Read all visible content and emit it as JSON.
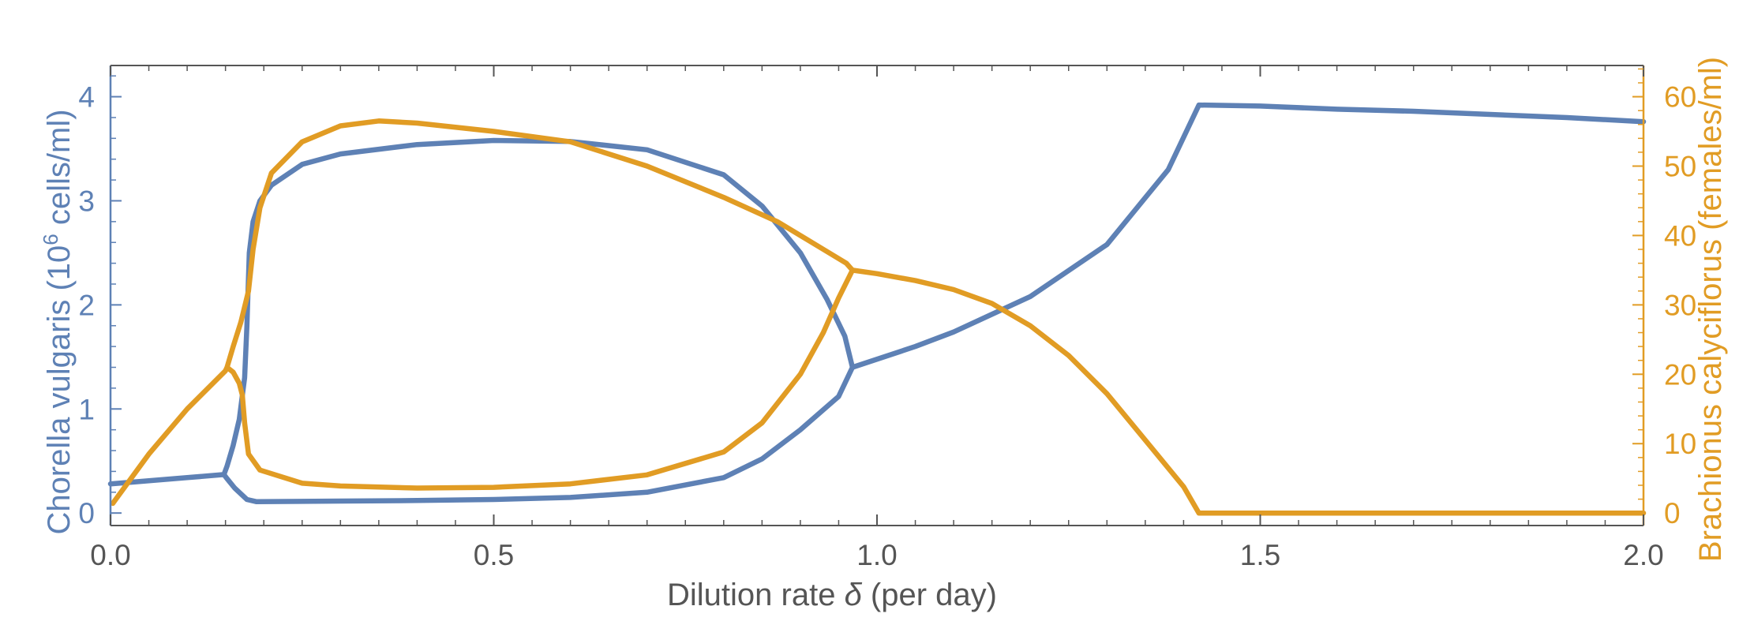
{
  "chart_data": {
    "type": "line",
    "xlabel": "Dilution rate δ (per day)",
    "xlabel_parts": {
      "before": "Dilution rate ",
      "symbol": "δ",
      "after": " (per day)"
    },
    "ylabel_left": "Chorella vulgaris (10^6 cells/ml)",
    "ylabel_left_parts": {
      "before": "Chorella vulgaris (10",
      "sup": "6",
      "after": " cells/ml)"
    },
    "ylabel_right": "Brachionus calyciflorus (females/ml)",
    "xlim": [
      0,
      2
    ],
    "ylim_left": [
      -0.12,
      4.3
    ],
    "ylim_right": [
      -1.8,
      64.5
    ],
    "x_ticks": [
      0.0,
      0.5,
      1.0,
      1.5,
      2.0
    ],
    "x_tick_labels": [
      "0.0",
      "0.5",
      "1.0",
      "1.5",
      "2.0"
    ],
    "y_left_ticks": [
      0,
      1,
      2,
      3,
      4
    ],
    "y_left_tick_labels": [
      "0",
      "1",
      "2",
      "3",
      "4"
    ],
    "y_right_ticks": [
      0,
      10,
      20,
      30,
      40,
      50,
      60
    ],
    "y_right_tick_labels": [
      "0",
      "10",
      "20",
      "30",
      "40",
      "50",
      "60"
    ],
    "colors": {
      "left_axis": "#5E81B5",
      "right_axis": "#E19C24",
      "frame": "#555555",
      "text": "#555555"
    },
    "series": [
      {
        "axis": "left",
        "color": "#5E81B5",
        "points": [
          [
            0.0,
            0.28
          ],
          [
            0.05,
            0.31
          ],
          [
            0.1,
            0.34
          ],
          [
            0.148,
            0.37
          ],
          [
            0.152,
            0.45
          ],
          [
            0.16,
            0.65
          ],
          [
            0.168,
            0.9
          ],
          [
            0.175,
            1.3
          ],
          [
            0.178,
            1.8
          ],
          [
            0.181,
            2.5
          ],
          [
            0.186,
            2.8
          ],
          [
            0.195,
            3.0
          ],
          [
            0.21,
            3.15
          ],
          [
            0.25,
            3.35
          ],
          [
            0.3,
            3.45
          ],
          [
            0.4,
            3.54
          ],
          [
            0.5,
            3.58
          ],
          [
            0.6,
            3.57
          ],
          [
            0.7,
            3.49
          ],
          [
            0.8,
            3.25
          ],
          [
            0.85,
            2.95
          ],
          [
            0.9,
            2.5
          ],
          [
            0.935,
            2.05
          ],
          [
            0.958,
            1.7
          ],
          [
            0.968,
            1.4
          ],
          [
            0.95,
            1.12
          ],
          [
            0.9,
            0.8
          ],
          [
            0.85,
            0.52
          ],
          [
            0.8,
            0.34
          ],
          [
            0.7,
            0.2
          ],
          [
            0.6,
            0.15
          ],
          [
            0.5,
            0.13
          ],
          [
            0.4,
            0.12
          ],
          [
            0.3,
            0.115
          ],
          [
            0.19,
            0.11
          ],
          [
            0.178,
            0.13
          ],
          [
            0.162,
            0.24
          ],
          [
            0.152,
            0.33
          ],
          [
            0.148,
            0.37
          ]
        ]
      },
      {
        "axis": "left",
        "color": "#5E81B5",
        "points": [
          [
            0.968,
            1.4
          ],
          [
            1.05,
            1.6
          ],
          [
            1.1,
            1.74
          ],
          [
            1.2,
            2.08
          ],
          [
            1.3,
            2.58
          ],
          [
            1.38,
            3.3
          ],
          [
            1.42,
            3.92
          ],
          [
            1.5,
            3.91
          ],
          [
            1.6,
            3.88
          ],
          [
            1.7,
            3.86
          ],
          [
            1.8,
            3.83
          ],
          [
            1.9,
            3.8
          ],
          [
            2.0,
            3.76
          ]
        ]
      },
      {
        "axis": "right",
        "color": "#E19C24",
        "points": [
          [
            0.003,
            1.4
          ],
          [
            0.05,
            8.5
          ],
          [
            0.1,
            15.0
          ],
          [
            0.15,
            20.5
          ],
          [
            0.152,
            21.0
          ],
          [
            0.16,
            20.3
          ],
          [
            0.168,
            18.7
          ],
          [
            0.172,
            17.0
          ],
          [
            0.175,
            13.0
          ],
          [
            0.18,
            8.5
          ],
          [
            0.195,
            6.2
          ],
          [
            0.25,
            4.3
          ],
          [
            0.3,
            3.9
          ],
          [
            0.4,
            3.6
          ],
          [
            0.5,
            3.7
          ],
          [
            0.6,
            4.2
          ],
          [
            0.7,
            5.5
          ],
          [
            0.8,
            8.8
          ],
          [
            0.85,
            13.0
          ],
          [
            0.9,
            20.0
          ],
          [
            0.93,
            26.0
          ],
          [
            0.95,
            31.0
          ],
          [
            0.968,
            35.0
          ],
          [
            0.96,
            36.0
          ],
          [
            0.93,
            38.0
          ],
          [
            0.87,
            42.0
          ],
          [
            0.8,
            45.5
          ],
          [
            0.7,
            50.0
          ],
          [
            0.6,
            53.5
          ],
          [
            0.5,
            55.0
          ],
          [
            0.4,
            56.2
          ],
          [
            0.35,
            56.5
          ],
          [
            0.3,
            55.8
          ],
          [
            0.25,
            53.5
          ],
          [
            0.21,
            49.0
          ],
          [
            0.195,
            44.0
          ],
          [
            0.186,
            38.0
          ],
          [
            0.18,
            32.0
          ],
          [
            0.17,
            27.5
          ],
          [
            0.16,
            24.0
          ],
          [
            0.152,
            21.0
          ]
        ]
      },
      {
        "axis": "right",
        "color": "#E19C24",
        "points": [
          [
            0.968,
            35.0
          ],
          [
            1.0,
            34.5
          ],
          [
            1.05,
            33.5
          ],
          [
            1.1,
            32.2
          ],
          [
            1.15,
            30.2
          ],
          [
            1.2,
            27.0
          ],
          [
            1.25,
            22.7
          ],
          [
            1.3,
            17.2
          ],
          [
            1.35,
            10.5
          ],
          [
            1.4,
            3.8
          ],
          [
            1.42,
            0.0
          ],
          [
            1.5,
            0.0
          ],
          [
            1.7,
            0.0
          ],
          [
            2.0,
            0.0
          ]
        ]
      }
    ]
  }
}
